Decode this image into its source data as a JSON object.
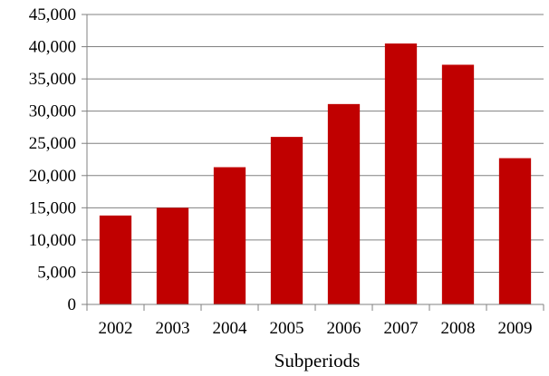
{
  "chart_data": {
    "type": "bar",
    "title": "",
    "xlabel": "Subperiods",
    "ylabel": "",
    "categories": [
      "2002",
      "2003",
      "2004",
      "2005",
      "2006",
      "2007",
      "2008",
      "2009"
    ],
    "values": [
      13800,
      15000,
      21300,
      26000,
      31100,
      40500,
      37200,
      22700
    ],
    "ylim": [
      0,
      45000
    ],
    "yticks": [
      "0",
      "5,000",
      "10,000",
      "15,000",
      "20,000",
      "25,000",
      "30,000",
      "35,000",
      "40,000",
      "45,000"
    ],
    "ytick_values": [
      0,
      5000,
      10000,
      15000,
      20000,
      25000,
      30000,
      35000,
      40000,
      45000
    ],
    "grid": true,
    "legend": "none",
    "bar_color": "#c00000",
    "grid_color": "#808080",
    "axis_color": "#808080"
  }
}
